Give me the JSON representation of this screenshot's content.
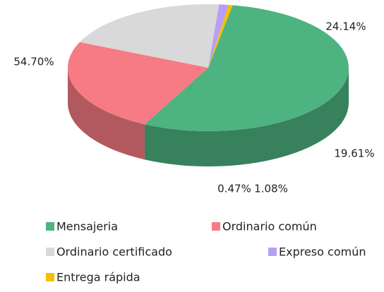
{
  "chart_data": {
    "type": "pie",
    "categories": [
      "Mensajeria",
      "Ordinario común",
      "Ordinario certificado",
      "Expreso común",
      "Entrega rápida"
    ],
    "values": [
      54.7,
      24.14,
      19.61,
      1.08,
      0.47
    ],
    "value_labels": [
      "54.70%",
      "24.14%",
      "19.61%",
      "1.08%",
      "0.47%"
    ],
    "colors": [
      "#4db380",
      "#f77b84",
      "#d9d9d9",
      "#b89ff5",
      "#f5c000"
    ],
    "legend": "bottom"
  }
}
